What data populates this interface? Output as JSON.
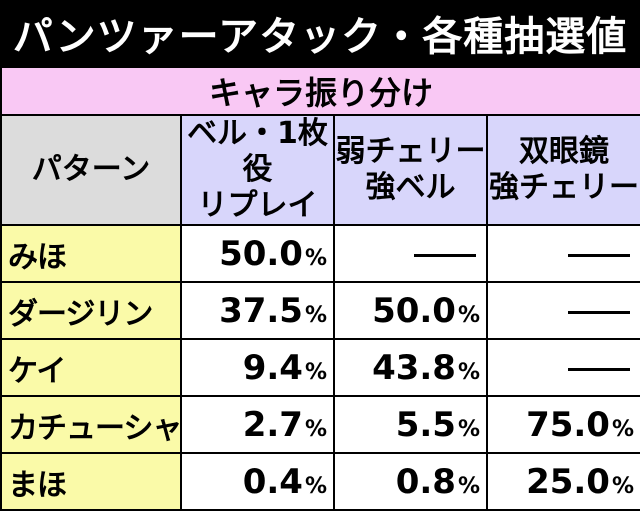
{
  "title": "パンツァーアタック・各種抽選値",
  "subtitle": "キャラ振り分け",
  "headers": {
    "pattern": "パターン",
    "col1": [
      "ベル・1枚役",
      "リプレイ"
    ],
    "col2": [
      "弱チェリー",
      "強ベル"
    ],
    "col3": [
      "双眼鏡",
      "強チェリー"
    ]
  },
  "rows": [
    {
      "name": "みほ",
      "v1": "50.0",
      "v2": "",
      "v3": ""
    },
    {
      "name": "ダージリン",
      "v1": "37.5",
      "v2": "50.0",
      "v3": ""
    },
    {
      "name": "ケイ",
      "v1": "9.4",
      "v2": "43.8",
      "v3": ""
    },
    {
      "name": "カチューシャ",
      "v1": "2.7",
      "v2": "5.5",
      "v3": "75.0"
    },
    {
      "name": "まほ",
      "v1": "0.4",
      "v2": "0.8",
      "v3": "25.0"
    }
  ],
  "percent_sign": "%",
  "colors": {
    "title_bg": "#000000",
    "subtitle_bg": "#f9c8f4",
    "pattern_header_bg": "#dcdcdc",
    "column_header_bg": "#d8d6fb",
    "name_bg": "#fafaa8"
  }
}
